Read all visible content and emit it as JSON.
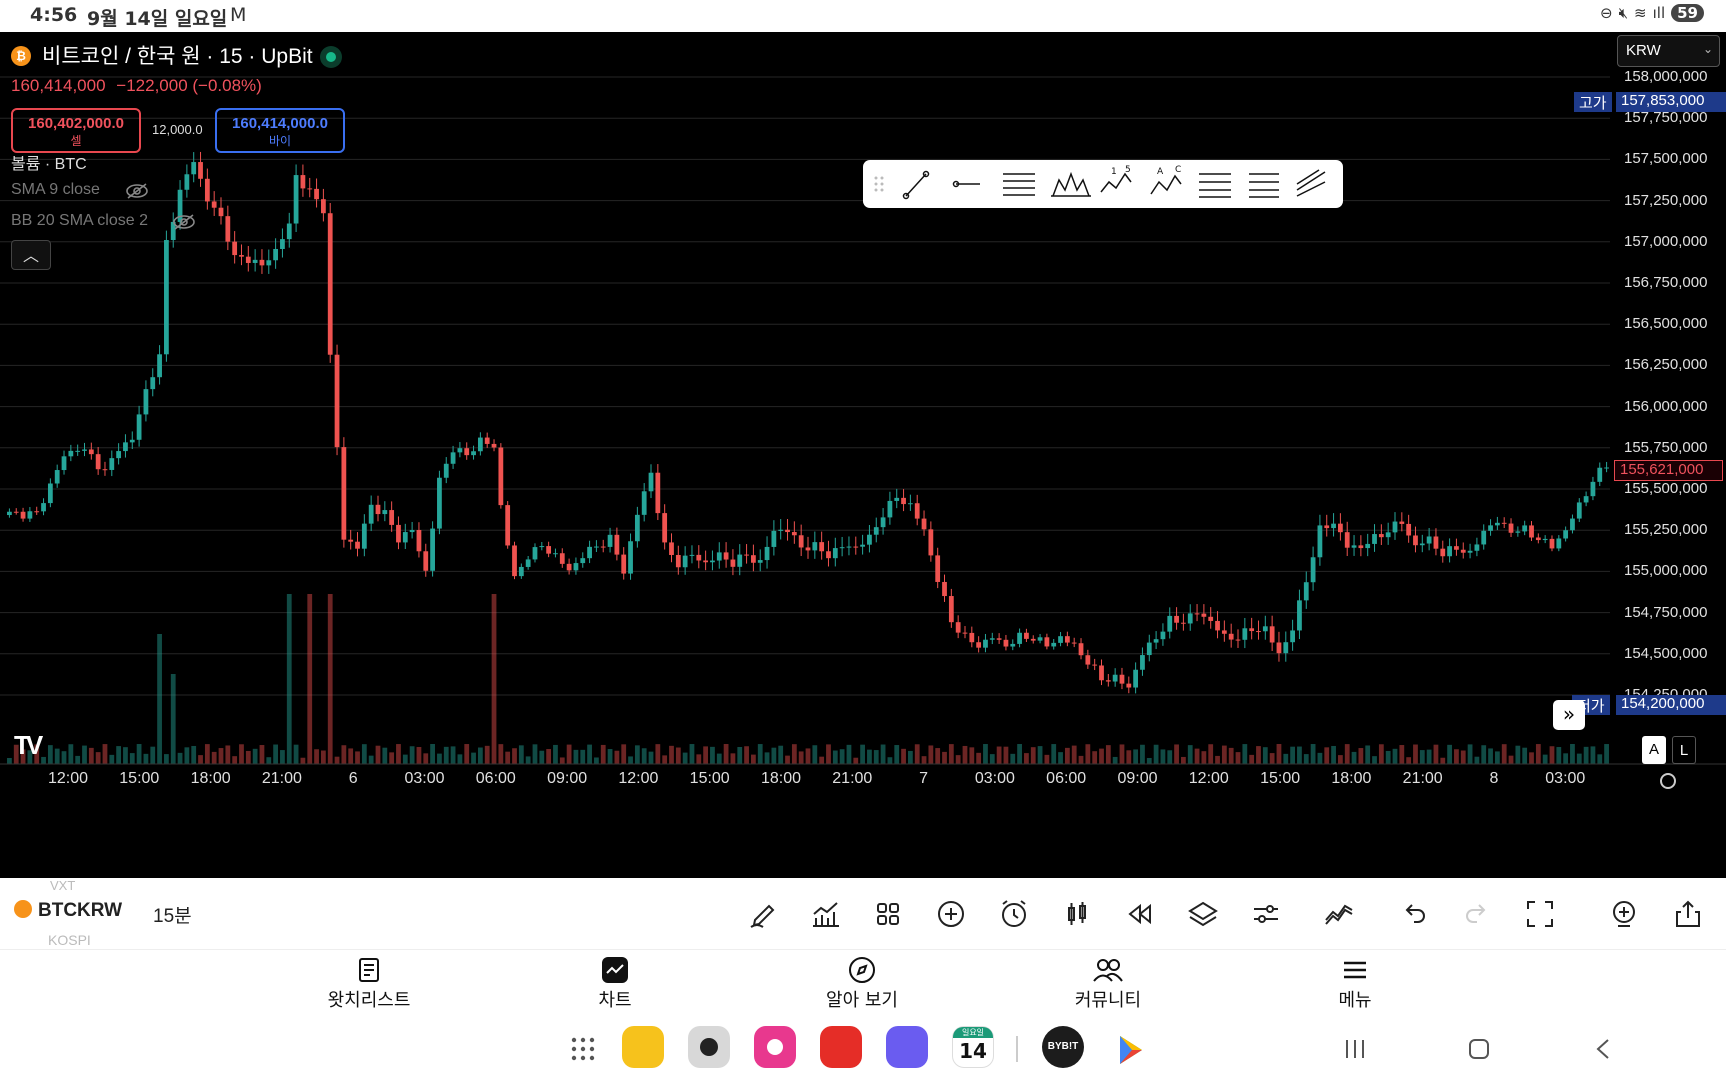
{
  "status_bar": {
    "time": "4:56",
    "date": "9월 14일 일요일",
    "battery": "59"
  },
  "chart": {
    "symbol_title": "비트코인 / 한국 원 · 15 · UpBit",
    "last_price": "160,414,000",
    "change": "−122,000 (−0.08%)",
    "sell": {
      "price": "160,402,000.0",
      "label": "셀"
    },
    "buy": {
      "price": "160,414,000.0",
      "label": "바이"
    },
    "spread": "12,000.0",
    "legend": {
      "volume": "볼륨 · BTC",
      "sma": "SMA 9 close",
      "bb": "BB 20 SMA close 2"
    },
    "currency": "KRW",
    "high_label": "고가",
    "high_value": "157,853,000",
    "low_label": "저가",
    "low_value": "154,200,000",
    "current_price_tag": "155,621,000",
    "scale_auto": "A",
    "scale_log": "L",
    "colors": {
      "up": "#26a69a",
      "down": "#ef5350",
      "background": "#000000",
      "accent": "#1e3a8a"
    }
  },
  "chart_data": {
    "type": "candlestick",
    "title": "비트코인 / 한국 원 · 15 · UpBit",
    "y_axis_labels": [
      "158,000,000",
      "157,750,000",
      "157,500,000",
      "157,250,000",
      "157,000,000",
      "156,750,000",
      "156,500,000",
      "156,250,000",
      "156,000,000",
      "155,750,000",
      "155,500,000",
      "155,250,000",
      "155,000,000",
      "154,750,000",
      "154,500,000",
      "154,250,000"
    ],
    "y_axis_values": [
      158000000,
      157750000,
      157500000,
      157250000,
      157000000,
      156750000,
      156500000,
      156250000,
      156000000,
      155750000,
      155500000,
      155250000,
      155000000,
      154750000,
      154500000,
      154250000
    ],
    "x_axis_labels": [
      "12:00",
      "15:00",
      "18:00",
      "21:00",
      "6",
      "03:00",
      "06:00",
      "09:00",
      "12:00",
      "15:00",
      "18:00",
      "21:00",
      "7",
      "03:00",
      "06:00",
      "09:00",
      "12:00",
      "15:00",
      "18:00",
      "21:00",
      "8",
      "03:00"
    ],
    "ylim": [
      154150000,
      158080000
    ],
    "close_path": [
      [
        0,
        155350000
      ],
      [
        4,
        155350000
      ],
      [
        8,
        155700000
      ],
      [
        10,
        155750000
      ],
      [
        12,
        155700000
      ],
      [
        14,
        155600000
      ],
      [
        16,
        155750000
      ],
      [
        18,
        155800000
      ],
      [
        20,
        156100000
      ],
      [
        22,
        156300000
      ],
      [
        23,
        157000000
      ],
      [
        25,
        157300000
      ],
      [
        27,
        157500000
      ],
      [
        29,
        157250000
      ],
      [
        31,
        157150000
      ],
      [
        33,
        156900000
      ],
      [
        35,
        156900000
      ],
      [
        37,
        156850000
      ],
      [
        39,
        156950000
      ],
      [
        41,
        157100000
      ],
      [
        42,
        157400000
      ],
      [
        44,
        157300000
      ],
      [
        46,
        157200000
      ],
      [
        47,
        156300000
      ],
      [
        49,
        155200000
      ],
      [
        51,
        155150000
      ],
      [
        53,
        155400000
      ],
      [
        55,
        155350000
      ],
      [
        57,
        155200000
      ],
      [
        59,
        155250000
      ],
      [
        61,
        155000000
      ],
      [
        63,
        155550000
      ],
      [
        65,
        155750000
      ],
      [
        67,
        155700000
      ],
      [
        69,
        155800000
      ],
      [
        71,
        155750000
      ],
      [
        72,
        155400000
      ],
      [
        74,
        154950000
      ],
      [
        76,
        155100000
      ],
      [
        78,
        155150000
      ],
      [
        80,
        155100000
      ],
      [
        82,
        155000000
      ],
      [
        84,
        155100000
      ],
      [
        86,
        155150000
      ],
      [
        88,
        155200000
      ],
      [
        90,
        155000000
      ],
      [
        92,
        155350000
      ],
      [
        94,
        155600000
      ],
      [
        96,
        155150000
      ],
      [
        98,
        155050000
      ],
      [
        100,
        155100000
      ],
      [
        102,
        155050000
      ],
      [
        104,
        155100000
      ],
      [
        106,
        155050000
      ],
      [
        108,
        155100000
      ],
      [
        110,
        155050000
      ],
      [
        112,
        155250000
      ],
      [
        114,
        155250000
      ],
      [
        116,
        155150000
      ],
      [
        118,
        155150000
      ],
      [
        120,
        155100000
      ],
      [
        122,
        155150000
      ],
      [
        124,
        155150000
      ],
      [
        126,
        155200000
      ],
      [
        128,
        155350000
      ],
      [
        130,
        155450000
      ],
      [
        132,
        155400000
      ],
      [
        134,
        155250000
      ],
      [
        136,
        154950000
      ],
      [
        138,
        154700000
      ],
      [
        140,
        154600000
      ],
      [
        142,
        154550000
      ],
      [
        144,
        154600000
      ],
      [
        146,
        154550000
      ],
      [
        148,
        154600000
      ],
      [
        150,
        154600000
      ],
      [
        152,
        154550000
      ],
      [
        154,
        154600000
      ],
      [
        156,
        154550000
      ],
      [
        158,
        154450000
      ],
      [
        160,
        154350000
      ],
      [
        162,
        154350000
      ],
      [
        164,
        154300000
      ],
      [
        166,
        154500000
      ],
      [
        168,
        154600000
      ],
      [
        170,
        154700000
      ],
      [
        172,
        154700000
      ],
      [
        174,
        154750000
      ],
      [
        176,
        154700000
      ],
      [
        178,
        154600000
      ],
      [
        180,
        154600000
      ],
      [
        182,
        154650000
      ],
      [
        184,
        154650000
      ],
      [
        186,
        154500000
      ],
      [
        188,
        154650000
      ],
      [
        190,
        154950000
      ],
      [
        192,
        155250000
      ],
      [
        194,
        155300000
      ],
      [
        196,
        155150000
      ],
      [
        198,
        155150000
      ],
      [
        200,
        155200000
      ],
      [
        202,
        155250000
      ],
      [
        204,
        155300000
      ],
      [
        206,
        155150000
      ],
      [
        208,
        155200000
      ],
      [
        210,
        155100000
      ],
      [
        212,
        155150000
      ],
      [
        214,
        155100000
      ],
      [
        216,
        155250000
      ],
      [
        218,
        155300000
      ],
      [
        220,
        155250000
      ],
      [
        222,
        155250000
      ],
      [
        224,
        155200000
      ],
      [
        226,
        155150000
      ],
      [
        228,
        155250000
      ],
      [
        230,
        155400000
      ],
      [
        232,
        155550000
      ],
      [
        234,
        155650000
      ]
    ],
    "volume_spikes_at_index": [
      22,
      24,
      41,
      44,
      47,
      71
    ]
  },
  "toolbar": {
    "symbol": "BTCKRW",
    "interval": "15분",
    "ghost_top": "VXT",
    "ghost_bottom": "KOSPI"
  },
  "nav": {
    "items": [
      {
        "label": "왓치리스트"
      },
      {
        "label": "차트"
      },
      {
        "label": "알아 보기"
      },
      {
        "label": "커뮤니티"
      },
      {
        "label": "메뉴"
      }
    ]
  },
  "taskbar": {
    "calendar_day": "14",
    "calendar_weekday": "일요일",
    "bybit_label": "BYB!T"
  }
}
